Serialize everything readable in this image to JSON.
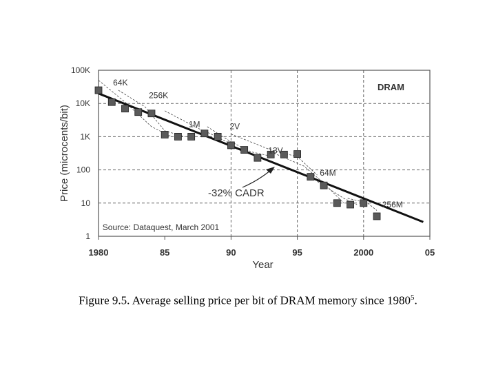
{
  "chart_data": {
    "type": "scatter",
    "x_range": [
      1980,
      2005
    ],
    "y_range": [
      1,
      100000
    ],
    "y_scale": "log",
    "grid": true,
    "x_ticks": [
      "1980",
      "85",
      "90",
      "95",
      "2000",
      "05"
    ],
    "y_ticks": [
      {
        "value": 100000,
        "label": "100K"
      },
      {
        "value": 10000,
        "label": "10K"
      },
      {
        "value": 1000,
        "label": "1K"
      },
      {
        "value": 100,
        "label": "100"
      },
      {
        "value": 10,
        "label": "10"
      },
      {
        "value": 1,
        "label": "1"
      }
    ],
    "xlabel": "Year",
    "ylabel": "Price (microcents/bit)",
    "series": [
      {
        "name": "DRAM",
        "x": [
          1980,
          1981,
          1982,
          1983,
          1984,
          1985,
          1986,
          1987,
          1988,
          1989,
          1990,
          1991,
          1992,
          1993,
          1994,
          1995,
          1996,
          1997,
          1998,
          1999,
          2000,
          2001
        ],
        "y": [
          25000,
          11000,
          7000,
          5500,
          5000,
          1150,
          1000,
          1000,
          1250,
          1000,
          550,
          400,
          230,
          290,
          290,
          300,
          62,
          34,
          10,
          9,
          10,
          4
        ]
      }
    ],
    "trend_line": {
      "x": [
        1980,
        2004.5
      ],
      "y": [
        20000,
        2.7
      ],
      "label": "-32% CADR"
    },
    "annotations": [
      {
        "text": "64K",
        "x": 1981.1,
        "y": 35000
      },
      {
        "text": "256K",
        "x": 1983.8,
        "y": 14500
      },
      {
        "text": "1M",
        "x": 1986.8,
        "y": 1950
      },
      {
        "text": "2V",
        "x": 1889.9,
        "y": 1700
      },
      {
        "text": "13V",
        "x": 1992.8,
        "y": 315
      },
      {
        "text": "64M",
        "x": 1996.7,
        "y": 67
      },
      {
        "text": "256M",
        "x": 2001.4,
        "y": 7.5
      },
      {
        "text": "Source: Dataquest, March 2001",
        "x": 1980.3,
        "y": 1.55
      }
    ]
  },
  "caption": {
    "text": "Figure 9.5. Average selling price per bit of DRAM memory since 1980",
    "superscript": "5",
    "suffix": "."
  }
}
